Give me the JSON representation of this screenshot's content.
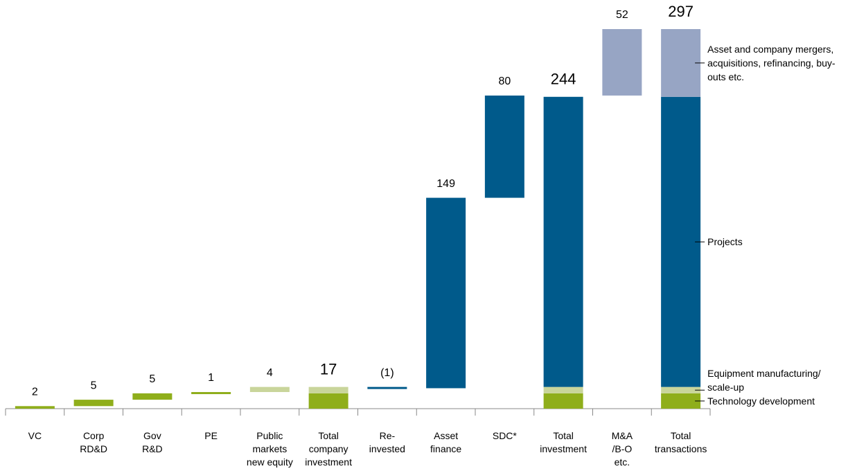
{
  "chart_data": {
    "type": "waterfall",
    "categories": [
      [
        "VC"
      ],
      [
        "Corp",
        "RD&D"
      ],
      [
        "Gov",
        "R&D"
      ],
      [
        "PE"
      ],
      [
        "Public",
        "markets",
        "new equity"
      ],
      [
        "Total",
        "company",
        "investment"
      ],
      [
        "Re-",
        "invested"
      ],
      [
        "Asset",
        "finance"
      ],
      [
        "SDC*"
      ],
      [
        "Total",
        "investment"
      ],
      [
        "M&A",
        "/B-O",
        "etc."
      ],
      [
        "Total",
        "transactions"
      ]
    ],
    "values": [
      2,
      5,
      5,
      1,
      4,
      17,
      -1,
      149,
      80,
      244,
      52,
      297
    ],
    "value_labels": [
      "2",
      "5",
      "5",
      "1",
      "4",
      "17",
      "(1)",
      "149",
      "80",
      "244",
      "52",
      "297"
    ],
    "series": [
      {
        "name": "Technology development",
        "color": "#8fae1b",
        "values": [
          2,
          5,
          5,
          1,
          null,
          12,
          null,
          null,
          null,
          12,
          null,
          12
        ]
      },
      {
        "name": "Equipment manufacturing/ scale-up",
        "color": "#c9d59b",
        "values": [
          null,
          null,
          null,
          null,
          4,
          5,
          null,
          null,
          null,
          5,
          null,
          5
        ]
      },
      {
        "name": "Projects",
        "color": "#005a8b",
        "values": [
          null,
          null,
          null,
          null,
          null,
          null,
          -1,
          149,
          80,
          227,
          null,
          227
        ]
      },
      {
        "name": "Asset and company mergers, acquisitions, refinancing, buy-outs etc.",
        "color": "#97a5c4",
        "values": [
          null,
          null,
          null,
          null,
          null,
          null,
          null,
          null,
          null,
          null,
          52,
          53
        ]
      }
    ]
  }
}
